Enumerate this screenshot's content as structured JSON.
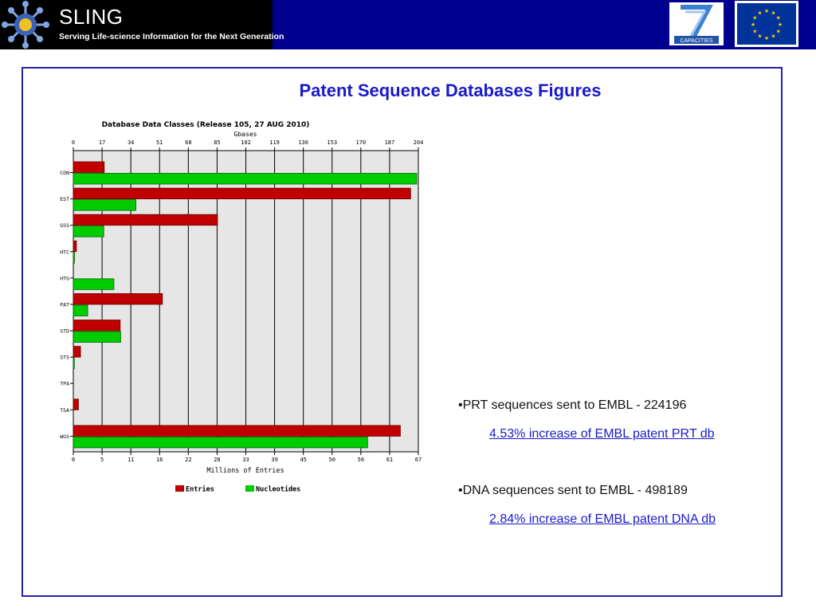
{
  "header": {
    "logo_title": "SLING",
    "logo_tagline": "Serving Life-science Information for the Next Generation",
    "fp7_label": "CAPACITIES"
  },
  "slide": {
    "title": "Patent Sequence Databases Figures",
    "bullets": [
      {
        "text": "•PRT sequences sent to EMBL - 224196",
        "link": "4.53% increase of EMBL patent PRT db"
      },
      {
        "text": "•DNA sequences sent to EMBL - 498189",
        "link": "2.84% increase of EMBL patent DNA db"
      }
    ]
  },
  "chart_data": {
    "type": "bar",
    "orientation": "horizontal",
    "title": "Database Data Classes (Release 105, 27 AUG 2010)",
    "top_axis_label": "Gbases",
    "bottom_axis_label": "Millions of Entries",
    "top_ticks": [
      "0",
      "17",
      "34",
      "51",
      "68",
      "85",
      "102",
      "119",
      "136",
      "153",
      "170",
      "187",
      "204"
    ],
    "bottom_ticks": [
      "0",
      "5",
      "11",
      "16",
      "22",
      "28",
      "33",
      "39",
      "45",
      "50",
      "56",
      "61",
      "67"
    ],
    "top_range": [
      0,
      204
    ],
    "bottom_range": [
      0,
      67
    ],
    "categories": [
      "CON",
      "EST",
      "GSS",
      "HTC",
      "HTG",
      "PAT",
      "STD",
      "STS",
      "TPA",
      "TSA",
      "WGS"
    ],
    "series": [
      {
        "name": "Entries",
        "axis": "bottom",
        "color": "#c00000",
        "values": [
          6.0,
          65.5,
          28.0,
          0.6,
          0,
          17.3,
          9.1,
          1.4,
          0,
          1.0,
          63.5
        ]
      },
      {
        "name": "Nucleotides",
        "axis": "top",
        "color": "#00cc00",
        "values": [
          203,
          37,
          18,
          0.7,
          24,
          8.5,
          28,
          0.6,
          0,
          0,
          174
        ]
      }
    ],
    "grid": true,
    "legend_position": "bottom"
  }
}
